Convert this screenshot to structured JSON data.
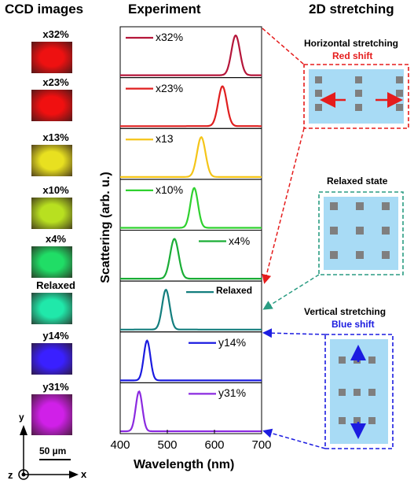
{
  "headers": {
    "ccd": "CCD images",
    "experiment": "Experiment",
    "stretching": "2D stretching"
  },
  "ccd_images": [
    {
      "label": "x32%",
      "color": "#ee1111"
    },
    {
      "label": "x23%",
      "color": "#f01010"
    },
    {
      "label": "x13%",
      "color": "#e8e020"
    },
    {
      "label": "x10%",
      "color": "#b8e020"
    },
    {
      "label": "x4%",
      "color": "#20dd66"
    },
    {
      "label": "Relaxed",
      "color": "#20e8aa"
    },
    {
      "label": "y14%",
      "color": "#3a20ff"
    },
    {
      "label": "y31%",
      "color": "#d020e8"
    }
  ],
  "scale_bar": "50 µm",
  "axes_icon": {
    "x": "x",
    "y": "y",
    "z": "z"
  },
  "chart_data": {
    "type": "line",
    "xlabel": "Wavelength (nm)",
    "ylabel": "Scattering (arb. u.)",
    "xlim": [
      400,
      700
    ],
    "xticks": [
      "400",
      "500",
      "600",
      "700"
    ],
    "series": [
      {
        "name": "x32%",
        "color": "#b5163a",
        "peak": 645,
        "width": 9
      },
      {
        "name": "x23%",
        "color": "#e01f1f",
        "peak": 617,
        "width": 9
      },
      {
        "name": "x13",
        "color": "#f5c518",
        "peak": 572,
        "width": 9
      },
      {
        "name": "x10%",
        "color": "#2fd12f",
        "peak": 557,
        "width": 8
      },
      {
        "name": "x4%",
        "color": "#1aad36",
        "peak": 515,
        "width": 9
      },
      {
        "name": "Relaxed",
        "color": "#137e7e",
        "peak": 497,
        "width": 8
      },
      {
        "name": "y14%",
        "color": "#1b1be0",
        "peak": 457,
        "width": 7
      },
      {
        "name": "y31%",
        "color": "#8b2ae0",
        "peak": 440,
        "width": 7
      }
    ]
  },
  "stretch_panels": {
    "horizontal": {
      "title": "Horizontal stretching",
      "subtitle": "Red shift",
      "color": "#e51c1c"
    },
    "relaxed": {
      "title": "Relaxed state",
      "color": "#2a9c82"
    },
    "vertical": {
      "title": "Vertical stretching",
      "subtitle": "Blue shift",
      "color": "#1c1ce0"
    }
  }
}
